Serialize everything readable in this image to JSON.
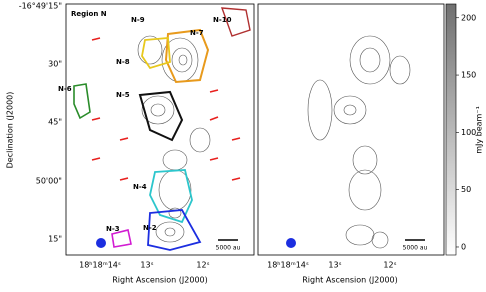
{
  "left_panel": {
    "region_title": "Region N",
    "labels": [
      "N-2",
      "N-3",
      "N-4",
      "N-5",
      "N-6",
      "N-7",
      "N-8",
      "N-9",
      "N-10"
    ],
    "scale_bar": "5000 au"
  },
  "right_panel": {
    "scale_bar": "5000 au"
  },
  "y_axis": {
    "title": "Declination (J2000)",
    "tick_labels": [
      "-16°49'15\"",
      "30\"",
      "45\"",
      "50'00\"",
      "15\""
    ]
  },
  "x_axis": {
    "title": "Right Ascension (J2000)",
    "left_tick_labels": [
      "18ʰ18ᵐ14ˢ",
      "13ˢ",
      "12ˢ"
    ],
    "right_tick_labels": [
      "18ʰ18ᵐ14ˢ",
      "13ˢ",
      "12ˢ"
    ]
  },
  "colorbar": {
    "label": "mJy beam⁻¹",
    "lim": [
      -7,
      212
    ],
    "ticks": [
      0,
      50,
      100,
      150,
      200
    ]
  }
}
